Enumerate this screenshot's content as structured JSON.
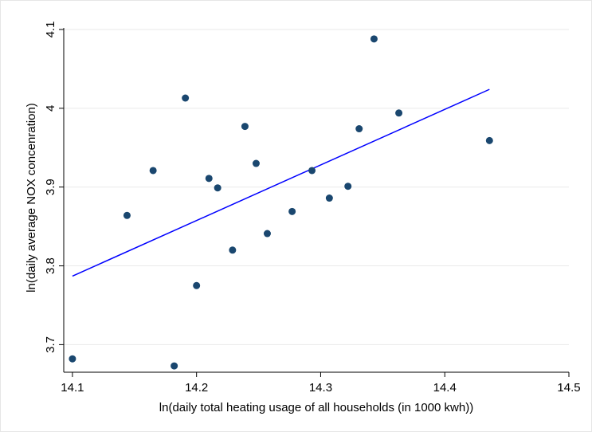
{
  "chart_data": {
    "type": "scatter",
    "x_label": "ln(daily total heating usage of all households (in 1000 kwh))",
    "y_label": "ln(daily average NOX concenration)",
    "x": [
      14.1,
      14.144,
      14.165,
      14.182,
      14.191,
      14.2,
      14.21,
      14.217,
      14.229,
      14.239,
      14.248,
      14.257,
      14.277,
      14.293,
      14.307,
      14.322,
      14.331,
      14.343,
      14.363,
      14.436
    ],
    "values": [
      3.682,
      3.864,
      3.921,
      3.673,
      4.013,
      3.775,
      3.911,
      3.899,
      3.82,
      3.977,
      3.93,
      3.841,
      3.869,
      3.921,
      3.886,
      3.901,
      3.974,
      4.088,
      3.994,
      3.959
    ],
    "color": "#1a476f",
    "fit": {
      "x": [
        14.1,
        14.436
      ],
      "values": [
        3.787,
        4.024
      ],
      "color": "#0000ff"
    },
    "xlim": [
      14.093,
      14.5
    ],
    "ylim": [
      3.665,
      4.1
    ],
    "xticks": [
      14.1,
      14.2,
      14.3,
      14.4,
      14.5
    ],
    "yticks": [
      3.7,
      3.8,
      3.9,
      4,
      4.1
    ],
    "grid": true
  }
}
